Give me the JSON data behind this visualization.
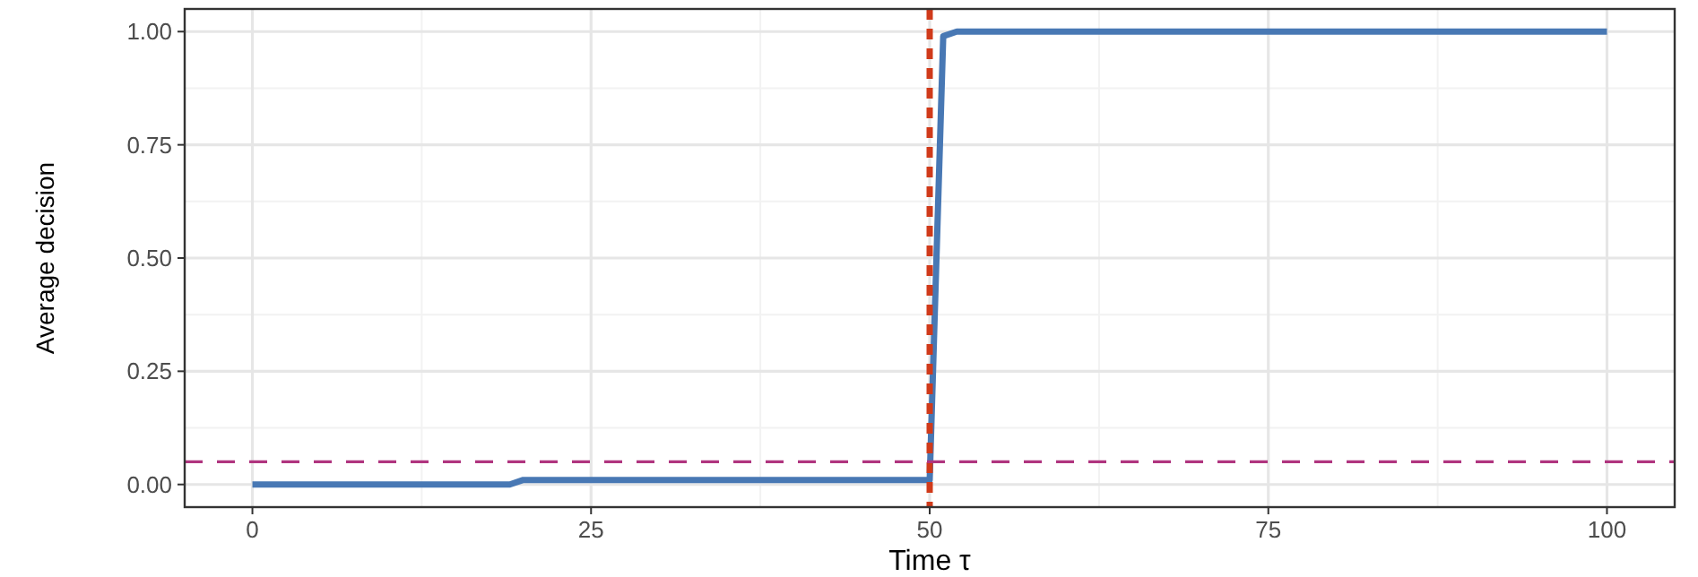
{
  "chart_data": {
    "type": "line",
    "xlabel": "Time τ",
    "ylabel": "Average decision",
    "series": [
      {
        "color": "#4878b4",
        "x": [
          0,
          19,
          20,
          50,
          51,
          52,
          100
        ],
        "values": [
          0,
          0,
          0.01,
          0.01,
          0.99,
          1,
          1
        ]
      }
    ],
    "xlim": [
      -5,
      105
    ],
    "ylim": [
      -0.05,
      1.05
    ],
    "xticks": [
      0,
      25,
      50,
      75,
      100
    ],
    "yticks": [
      {
        "value": 0,
        "label": "0.00"
      },
      {
        "value": 0.25,
        "label": "0.25"
      },
      {
        "value": 0.5,
        "label": "0.50"
      },
      {
        "value": 0.75,
        "label": "0.75"
      },
      {
        "value": 1,
        "label": "1.00"
      }
    ],
    "grid": true,
    "ref_lines": [
      {
        "axis": "x",
        "value": 50,
        "color": "#d03a1a",
        "line_style": "dotted"
      },
      {
        "axis": "y",
        "value": 0.05,
        "color": "#b0357f",
        "line_style": "dashed"
      }
    ]
  }
}
